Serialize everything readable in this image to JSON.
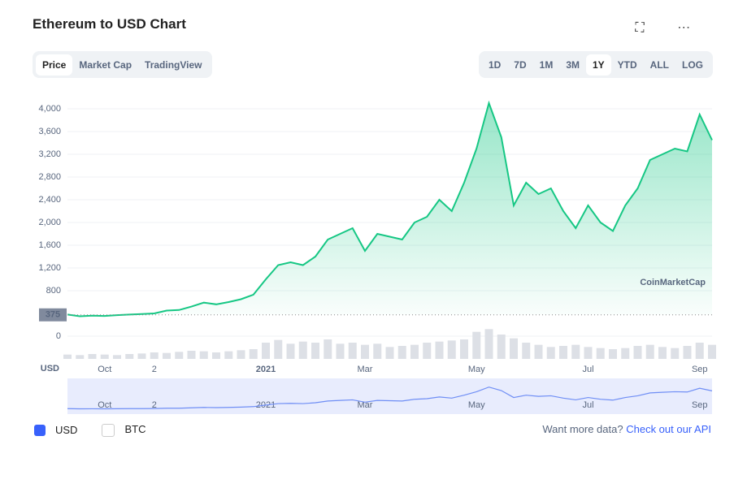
{
  "header": {
    "title": "Ethereum to USD Chart"
  },
  "tabs": [
    "Price",
    "Market Cap",
    "TradingView"
  ],
  "ranges": [
    "1D",
    "7D",
    "1M",
    "3M",
    "1Y",
    "YTD",
    "ALL",
    "LOG"
  ],
  "chart_data": {
    "type": "area",
    "categories": [
      null,
      null,
      null,
      "Oct",
      null,
      null,
      null,
      "2",
      null,
      null,
      null,
      null,
      null,
      null,
      null,
      null,
      "2021",
      null,
      null,
      null,
      null,
      null,
      null,
      null,
      "Mar",
      null,
      null,
      null,
      null,
      null,
      null,
      null,
      null,
      "May",
      null,
      null,
      null,
      null,
      null,
      null,
      null,
      null,
      "Jul",
      null,
      null,
      null,
      null,
      null,
      null,
      null,
      null,
      "Sep",
      null
    ],
    "series": [
      {
        "name": "USD",
        "color": "#16c784",
        "values": [
          380,
          350,
          360,
          355,
          370,
          380,
          390,
          400,
          450,
          460,
          520,
          590,
          560,
          600,
          650,
          730,
          1000,
          1250,
          1300,
          1250,
          1400,
          1700,
          1800,
          1900,
          1500,
          1800,
          1750,
          1700,
          2000,
          2100,
          2400,
          2200,
          2700,
          3300,
          4100,
          3500,
          2300,
          2700,
          2500,
          2600,
          2200,
          1900,
          2300,
          2000,
          1850,
          2300,
          2600,
          3100,
          3200,
          3300,
          3250,
          3900,
          3450
        ]
      }
    ],
    "legend": [
      "USD",
      "BTC"
    ],
    "ylim": [
      0,
      4200
    ],
    "yticks": [
      0,
      800,
      {
        "value": 1200,
        "label": "1,200"
      },
      {
        "value": 1600,
        "label": "1,600"
      },
      {
        "value": 2000,
        "label": "2,000"
      },
      {
        "value": 2400,
        "label": "2,400"
      },
      {
        "value": 2800,
        "label": "2,800"
      },
      {
        "value": 3200,
        "label": "3,200"
      },
      {
        "value": 3600,
        "label": "3,600"
      },
      {
        "value": 4000,
        "label": "4,000"
      }
    ],
    "y_label": "USD",
    "reference": 375,
    "grid": true,
    "watermark": "CoinMarketCap",
    "volume": {
      "ylim": [
        0,
        60
      ],
      "values": [
        8,
        7,
        9,
        8,
        7,
        9,
        10,
        12,
        11,
        13,
        15,
        14,
        12,
        14,
        16,
        18,
        30,
        35,
        28,
        32,
        30,
        36,
        28,
        30,
        26,
        28,
        22,
        24,
        26,
        30,
        32,
        34,
        36,
        50,
        55,
        45,
        38,
        30,
        26,
        22,
        24,
        26,
        22,
        20,
        18,
        20,
        24,
        26,
        22,
        20,
        24,
        30,
        26
      ]
    }
  },
  "footer": {
    "prompt": "Want more data?",
    "link": "Check out our API"
  }
}
